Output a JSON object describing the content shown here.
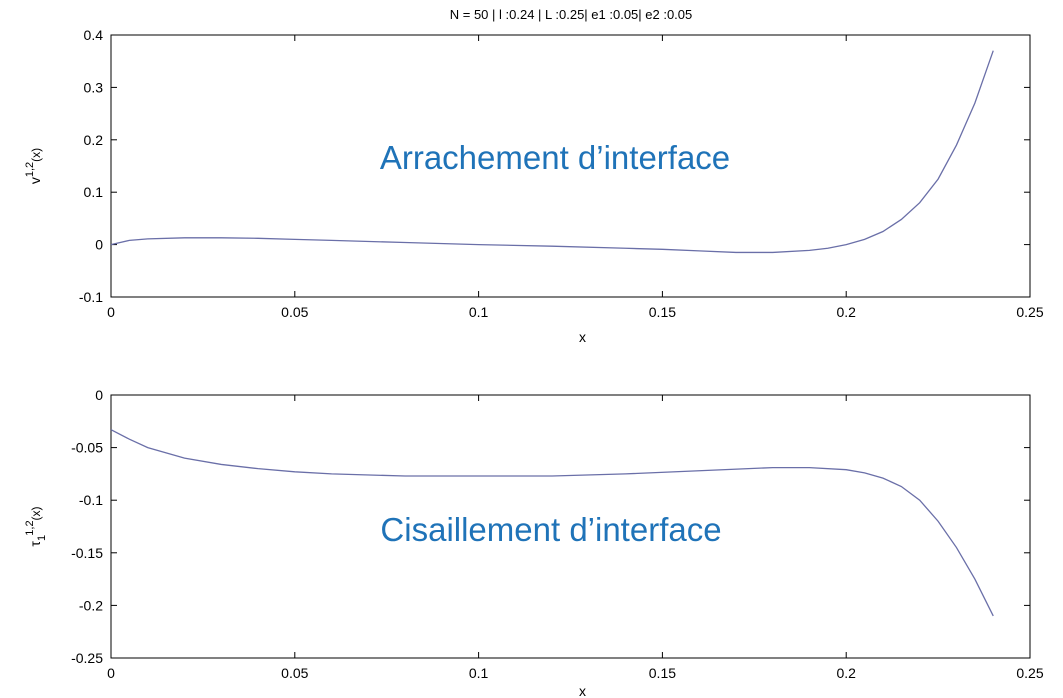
{
  "figure_title": "N = 50 | l :0.24 | L :0.25| e1 :0.05| e2 :0.05",
  "colors": {
    "line": "#6a6fa8",
    "annotation": "#1f73b8",
    "axes": "#000000"
  },
  "chart_data": [
    {
      "type": "line",
      "name": "top",
      "annotation": "Arrachement d’interface",
      "xlabel": "x",
      "ylabel_base": "v",
      "ylabel_sup": "1,2",
      "ylabel_sub": "",
      "ylabel_arg": "(x)",
      "xlim": [
        0,
        0.25
      ],
      "ylim": [
        -0.1,
        0.4
      ],
      "xticks": [
        0,
        0.05,
        0.1,
        0.15,
        0.2,
        0.25
      ],
      "xtick_labels": [
        "0",
        "0.05",
        "0.1",
        "0.15",
        "0.2",
        "0.25"
      ],
      "yticks": [
        0.4,
        0.3,
        0.2,
        0.1,
        0,
        -0.1
      ],
      "ytick_labels": [
        "0.4",
        "0.3",
        "0.2",
        "0.1",
        "0",
        "-0.1"
      ],
      "x": [
        0,
        0.005,
        0.01,
        0.02,
        0.03,
        0.04,
        0.05,
        0.06,
        0.08,
        0.1,
        0.12,
        0.14,
        0.15,
        0.16,
        0.17,
        0.18,
        0.19,
        0.195,
        0.2,
        0.205,
        0.21,
        0.215,
        0.22,
        0.225,
        0.23,
        0.235,
        0.24
      ],
      "y": [
        0,
        0.008,
        0.011,
        0.013,
        0.013,
        0.012,
        0.01,
        0.008,
        0.004,
        0.0,
        -0.003,
        -0.007,
        -0.009,
        -0.012,
        -0.015,
        -0.015,
        -0.011,
        -0.007,
        0.0,
        0.01,
        0.025,
        0.048,
        0.08,
        0.125,
        0.19,
        0.27,
        0.37
      ]
    },
    {
      "type": "line",
      "name": "bottom",
      "annotation": "Cisaillement d’interface",
      "xlabel": "x",
      "ylabel_base": "τ",
      "ylabel_sup": "1,2",
      "ylabel_sub": "1",
      "ylabel_arg": "(x)",
      "xlim": [
        0,
        0.25
      ],
      "ylim": [
        -0.25,
        0
      ],
      "xticks": [
        0,
        0.05,
        0.1,
        0.15,
        0.2,
        0.25
      ],
      "xtick_labels": [
        "0",
        "0.05",
        "0.1",
        "0.15",
        "0.2",
        "0.25"
      ],
      "yticks": [
        0,
        -0.05,
        -0.1,
        -0.15,
        -0.2,
        -0.25
      ],
      "ytick_labels": [
        "0",
        "-0.05",
        "-0.1",
        "-0.15",
        "-0.2",
        "-0.25"
      ],
      "x": [
        0,
        0.005,
        0.01,
        0.02,
        0.03,
        0.04,
        0.05,
        0.06,
        0.08,
        0.1,
        0.12,
        0.14,
        0.16,
        0.18,
        0.19,
        0.2,
        0.205,
        0.21,
        0.215,
        0.22,
        0.225,
        0.23,
        0.235,
        0.24
      ],
      "y": [
        -0.033,
        -0.042,
        -0.05,
        -0.06,
        -0.066,
        -0.07,
        -0.073,
        -0.075,
        -0.077,
        -0.077,
        -0.077,
        -0.075,
        -0.072,
        -0.069,
        -0.069,
        -0.071,
        -0.074,
        -0.079,
        -0.087,
        -0.1,
        -0.12,
        -0.145,
        -0.175,
        -0.21
      ]
    }
  ]
}
